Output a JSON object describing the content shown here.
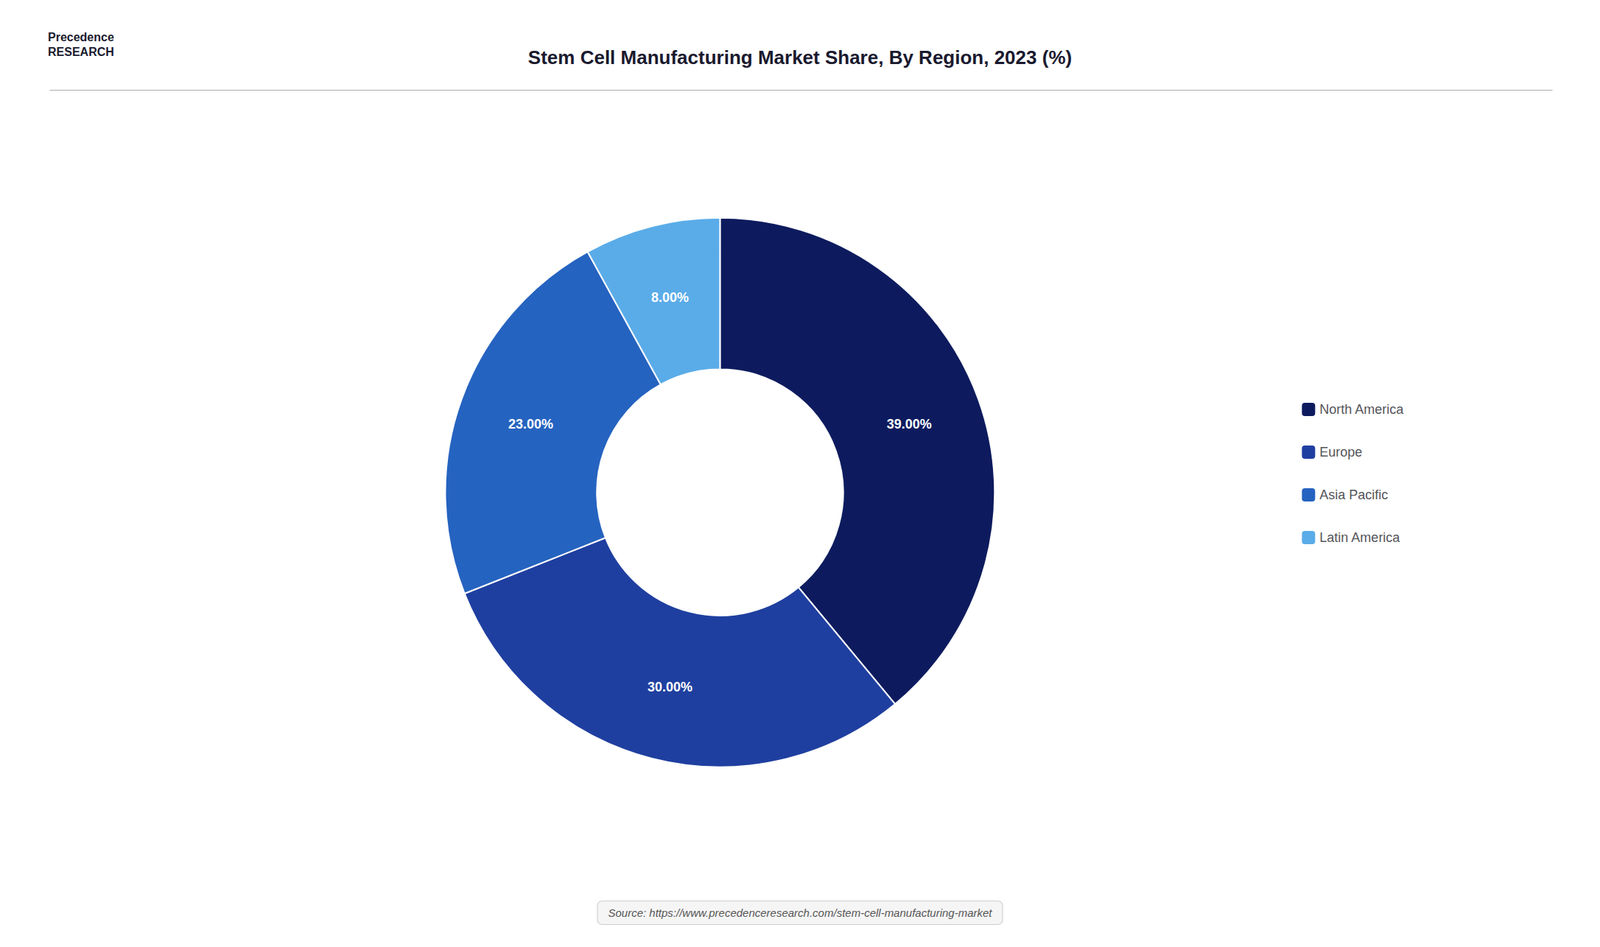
{
  "chart_data": {
    "type": "pie",
    "title": "Stem Cell Manufacturing Market Share, By Region, 2023 (%)",
    "categories": [
      "North America",
      "Europe",
      "Asia Pacific",
      "Latin America"
    ],
    "values": [
      39.0,
      30.0,
      23.0,
      8.0
    ],
    "value_labels": [
      "39.00%",
      "30.00%",
      "23.00%",
      "8.00%"
    ],
    "colors": [
      "#0d1b5e",
      "#1f3fa0",
      "#2563c0",
      "#5aace8"
    ],
    "data_labels": true,
    "legend": "right",
    "annotations": [
      "Precedence\nRESEARCH",
      "Source: https://www.precedenceresearch.com/stem-cell-manufacturing-market"
    ]
  }
}
